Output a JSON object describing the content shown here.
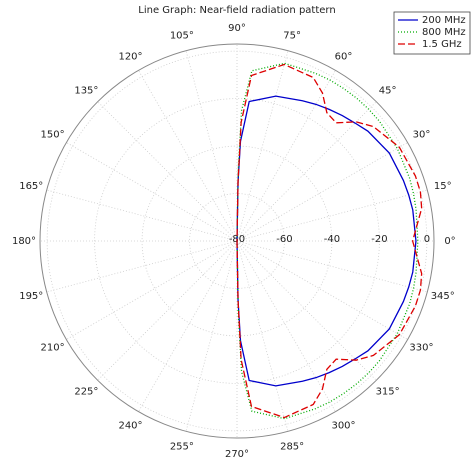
{
  "chart_data": {
    "type": "polar-line",
    "title": "Line Graph: Near-field radiation pattern",
    "x": [
      -90,
      -89,
      -88,
      -85,
      -75,
      -65,
      -60,
      -55,
      -50,
      -45,
      -40,
      -30,
      -20,
      -15,
      -10,
      0,
      10,
      15,
      20,
      30,
      40,
      45,
      50,
      55,
      60,
      65,
      75,
      85,
      88,
      89,
      90
    ],
    "series": [
      {
        "name": "200 MHz",
        "color": "#0000cc",
        "dash": "none",
        "values": [
          -80,
          -55,
          -38,
          -21,
          -16.8,
          -14.8,
          -13.5,
          -12.3,
          -11,
          -9.7,
          -8,
          -5.9,
          -5.4,
          -5.1,
          -4.8,
          -4.6,
          -4.8,
          -5.1,
          -5.4,
          -5.9,
          -8,
          -9.7,
          -11,
          -12.3,
          -13.5,
          -14.8,
          -16.8,
          -21,
          -38,
          -55,
          -80
        ]
      },
      {
        "name": "800 MHz",
        "color": "#00aa00",
        "dash": "1 2",
        "values": [
          -80,
          -50,
          -25,
          -8,
          -2.5,
          -2,
          -1.7,
          -1.6,
          -1.5,
          -1.5,
          -1.6,
          -2,
          -2.6,
          -3,
          -3.4,
          -3.8,
          -3.4,
          -3,
          -2.6,
          -2,
          -1.6,
          -1.5,
          -1.5,
          -1.6,
          -1.7,
          -2,
          -2.5,
          -8,
          -25,
          -50,
          -80
        ]
      },
      {
        "name": "1.5 GHz",
        "color": "#dd0000",
        "dash": "7 3",
        "values": [
          -80,
          -55,
          -30,
          -10,
          -3,
          -4,
          -8,
          -14,
          -15,
          -9,
          -5,
          -1,
          0,
          0,
          -1,
          -6,
          -1,
          0,
          0,
          -1,
          -5,
          -9,
          -15,
          -14,
          -8,
          -4,
          -3,
          -10,
          -30,
          -55,
          -80
        ]
      }
    ],
    "rlim": [
      -80,
      3
    ],
    "rticks": [
      -80,
      -60,
      -40,
      -20,
      0
    ],
    "thetaticks": [
      {
        "value": 0,
        "label": "0°"
      },
      {
        "value": 15,
        "label": "15°"
      },
      {
        "value": 30,
        "label": "30°"
      },
      {
        "value": 45,
        "label": "45°"
      },
      {
        "value": 60,
        "label": "60°"
      },
      {
        "value": 75,
        "label": "75°"
      },
      {
        "value": 90,
        "label": "90°"
      },
      {
        "value": 105,
        "label": "105°"
      },
      {
        "value": 120,
        "label": "120°"
      },
      {
        "value": 135,
        "label": "135°"
      },
      {
        "value": 150,
        "label": "150°"
      },
      {
        "value": 165,
        "label": "165°"
      },
      {
        "value": 180,
        "label": "180°"
      },
      {
        "value": 195,
        "label": "195°"
      },
      {
        "value": 210,
        "label": "210°"
      },
      {
        "value": 225,
        "label": "225°"
      },
      {
        "value": 240,
        "label": "240°"
      },
      {
        "value": 255,
        "label": "255°"
      },
      {
        "value": 270,
        "label": "270°"
      },
      {
        "value": 285,
        "label": "285°"
      },
      {
        "value": 300,
        "label": "300°"
      },
      {
        "value": 315,
        "label": "315°"
      },
      {
        "value": 330,
        "label": "330°"
      },
      {
        "value": 345,
        "label": "345°"
      }
    ],
    "grid": true,
    "legend": "upper-right"
  }
}
